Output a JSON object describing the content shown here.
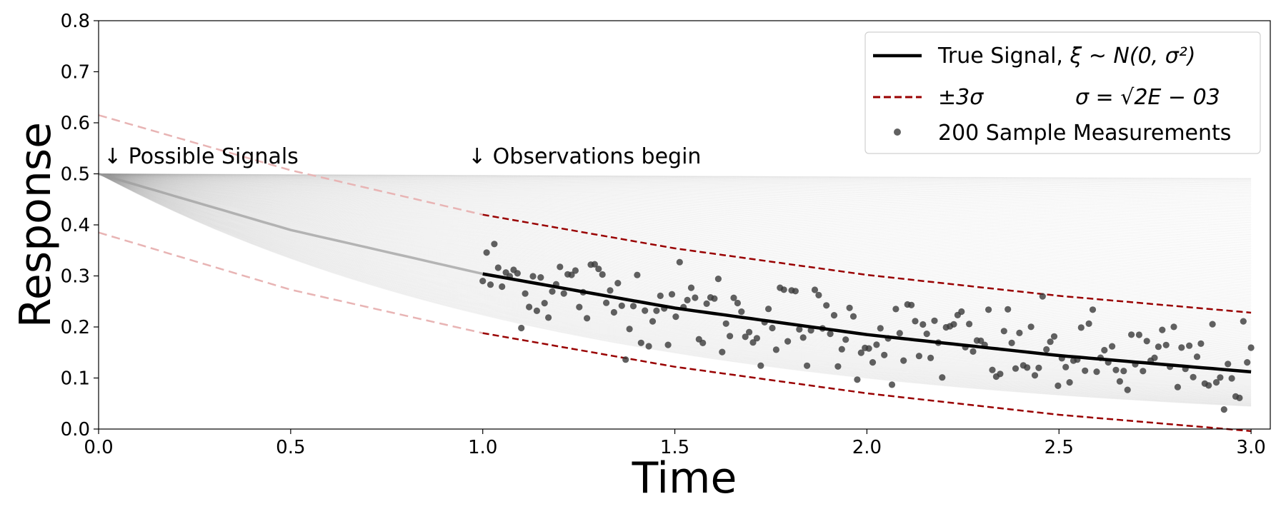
{
  "chart_data": {
    "type": "line",
    "xlabel": "Time",
    "ylabel": "Response",
    "xlim": [
      0.0,
      3.05
    ],
    "ylim": [
      0.0,
      0.8
    ],
    "xticks": [
      "0.0",
      "0.5",
      "1.0",
      "1.5",
      "2.0",
      "2.5",
      "3.0"
    ],
    "yticks": [
      "0.0",
      "0.1",
      "0.2",
      "0.3",
      "0.4",
      "0.5",
      "0.6",
      "0.7",
      "0.8"
    ],
    "grid": false,
    "legend_position": "top-right",
    "legend": {
      "true_signal": {
        "prefix": "True Signal, ",
        "math": "ξ ~ N(0, σ²)"
      },
      "bands": {
        "label": "±3σ",
        "sigma_text": "σ = √2E − 03"
      },
      "samples": "200 Sample Measurements"
    },
    "annotations": [
      {
        "text": "↓  Possible Signals",
        "x": 0.02,
        "y": 0.52
      },
      {
        "text": "↓  Observations begin",
        "x": 0.97,
        "y": 0.52
      }
    ],
    "true_signal": {
      "x": [
        0.0,
        0.5,
        1.0,
        1.5,
        2.0,
        2.5,
        3.0
      ],
      "y": [
        0.5,
        0.39,
        0.304,
        0.237,
        0.185,
        0.144,
        0.112
      ]
    },
    "upper_band": {
      "x": [
        0.0,
        0.5,
        1.0,
        1.5,
        2.0,
        2.5,
        3.0
      ],
      "y": [
        0.615,
        0.507,
        0.42,
        0.354,
        0.302,
        0.261,
        0.228
      ]
    },
    "lower_band": {
      "x": [
        0.0,
        0.5,
        1.0,
        1.5,
        2.0,
        2.5,
        3.0
      ],
      "y": [
        0.385,
        0.273,
        0.188,
        0.122,
        0.07,
        0.028,
        -0.004
      ]
    },
    "possible_signal_count": 200,
    "sample_count": 200,
    "sample_window": [
      1.0,
      3.0
    ],
    "colors": {
      "true_signal": "#000000",
      "band": "#990000",
      "band_faded": "#e8b4b4",
      "samples": "#3a3a3a",
      "possible_signals": "#9a9a9a"
    }
  }
}
